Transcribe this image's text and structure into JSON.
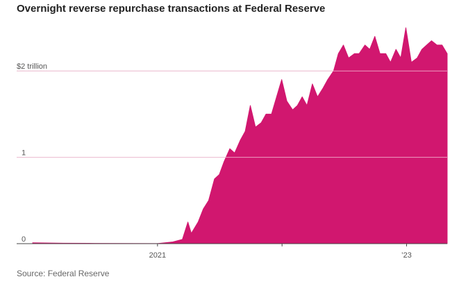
{
  "title": "Overnight reverse repurchase transactions at Federal Reserve",
  "source": "Source: Federal Reserve",
  "colors": {
    "fill": "#d1176f",
    "gridline_over_fill": "#f2b6d0",
    "baseline": "#444444",
    "tick_text": "#555555"
  },
  "chart_data": {
    "type": "area",
    "title": "Overnight reverse repurchase transactions at Federal Reserve",
    "xlabel": "",
    "ylabel": "",
    "ylim": [
      0,
      2.5
    ],
    "xlim": [
      "2020-01-01",
      "2023-04-30"
    ],
    "y_ticks": [
      {
        "value": 0,
        "label": "0"
      },
      {
        "value": 1,
        "label": "1"
      },
      {
        "value": 2,
        "label": "$2 trillion"
      }
    ],
    "x_ticks": [
      {
        "value": "2021-01-01",
        "label": "2021"
      },
      {
        "value": "2022-01-01",
        "label": ""
      },
      {
        "value": "2023-01-01",
        "label": "’23"
      }
    ],
    "grid": true,
    "x": [
      "2020-01-01",
      "2020-04-01",
      "2020-07-01",
      "2020-10-01",
      "2021-01-01",
      "2021-02-15",
      "2021-03-15",
      "2021-03-31",
      "2021-04-10",
      "2021-04-30",
      "2021-05-15",
      "2021-05-31",
      "2021-06-17",
      "2021-07-01",
      "2021-07-15",
      "2021-08-01",
      "2021-08-15",
      "2021-09-01",
      "2021-09-15",
      "2021-09-30",
      "2021-10-15",
      "2021-11-01",
      "2021-11-15",
      "2021-12-01",
      "2021-12-31",
      "2022-01-15",
      "2022-02-01",
      "2022-02-15",
      "2022-03-01",
      "2022-03-15",
      "2022-03-31",
      "2022-04-15",
      "2022-05-01",
      "2022-05-15",
      "2022-06-01",
      "2022-06-15",
      "2022-06-30",
      "2022-07-15",
      "2022-08-01",
      "2022-08-15",
      "2022-09-01",
      "2022-09-15",
      "2022-09-30",
      "2022-10-15",
      "2022-11-01",
      "2022-11-15",
      "2022-12-01",
      "2022-12-15",
      "2022-12-30",
      "2023-01-15",
      "2023-02-01",
      "2023-02-15",
      "2023-03-01",
      "2023-03-15",
      "2023-03-31",
      "2023-04-15",
      "2023-04-30"
    ],
    "series": [
      {
        "values": [
          0.01,
          0.005,
          0.003,
          0.002,
          0.001,
          0.02,
          0.05,
          0.25,
          0.12,
          0.25,
          0.4,
          0.5,
          0.75,
          0.8,
          0.95,
          1.1,
          1.05,
          1.2,
          1.3,
          1.6,
          1.35,
          1.4,
          1.5,
          1.5,
          1.9,
          1.65,
          1.55,
          1.6,
          1.7,
          1.6,
          1.85,
          1.7,
          1.8,
          1.9,
          2.0,
          2.2,
          2.3,
          2.15,
          2.2,
          2.2,
          2.3,
          2.25,
          2.4,
          2.2,
          2.2,
          2.1,
          2.25,
          2.15,
          2.5,
          2.1,
          2.15,
          2.25,
          2.3,
          2.35,
          2.3,
          2.3,
          2.2
        ]
      }
    ]
  }
}
